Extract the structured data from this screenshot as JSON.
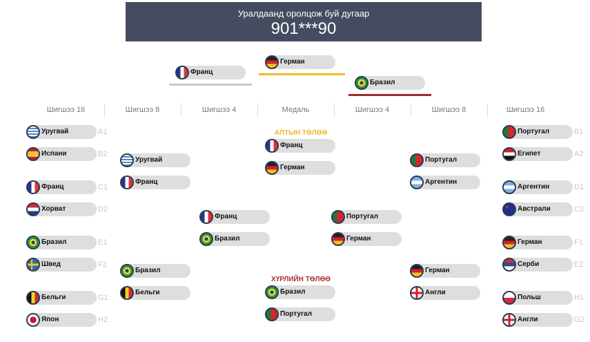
{
  "header": {
    "subtitle": "Уралдаанд оролцож буй дугаар",
    "number": "901***90"
  },
  "podium": {
    "first": {
      "team": "Герман",
      "flag": "de",
      "color": "#f0b92b"
    },
    "second": {
      "team": "Франц",
      "flag": "fr",
      "color": "#c8c8c8"
    },
    "third": {
      "team": "Бразил",
      "flag": "br",
      "color": "#9b2c2c"
    }
  },
  "columns": [
    "Шигшээ 16",
    "Шигшээ 8",
    "Шигшээ 4",
    "Медаль",
    "Шигшээ 4",
    "Шигшээ 8",
    "Шигшээ 16"
  ],
  "medals": {
    "gold": "АЛТЫН ТӨЛӨӨ",
    "bronze": "ХҮРЛИЙН ТӨЛӨӨ",
    "gold_color": "#f0b92b",
    "bronze_color": "#a8322d"
  },
  "r16_left": [
    {
      "team": "Уругвай",
      "flag": "uy",
      "code": "A1"
    },
    {
      "team": "Испани",
      "flag": "es",
      "code": "B2"
    },
    {
      "team": "Франц",
      "flag": "fr",
      "code": "C1"
    },
    {
      "team": "Хорват",
      "flag": "hr",
      "code": "D2"
    },
    {
      "team": "Бразил",
      "flag": "br",
      "code": "E1"
    },
    {
      "team": "Швед",
      "flag": "se",
      "code": "F2"
    },
    {
      "team": "Бельги",
      "flag": "be",
      "code": "G1"
    },
    {
      "team": "Япон",
      "flag": "jp",
      "code": "H2"
    }
  ],
  "r16_right": [
    {
      "team": "Португал",
      "flag": "pt",
      "code": "B1"
    },
    {
      "team": "Египет",
      "flag": "eg",
      "code": "A2"
    },
    {
      "team": "Аргентин",
      "flag": "ar",
      "code": "D1"
    },
    {
      "team": "Австрали",
      "flag": "au",
      "code": "C2"
    },
    {
      "team": "Герман",
      "flag": "de",
      "code": "F1"
    },
    {
      "team": "Серби",
      "flag": "rs",
      "code": "E2"
    },
    {
      "team": "Польш",
      "flag": "pl",
      "code": "H1"
    },
    {
      "team": "Англи",
      "flag": "en",
      "code": "G2"
    }
  ],
  "qf_left": [
    {
      "team": "Уругвай",
      "flag": "uy"
    },
    {
      "team": "Франц",
      "flag": "fr"
    },
    {
      "team": "Бразил",
      "flag": "br"
    },
    {
      "team": "Бельги",
      "flag": "be"
    }
  ],
  "qf_right": [
    {
      "team": "Португал",
      "flag": "pt"
    },
    {
      "team": "Аргентин",
      "flag": "ar"
    },
    {
      "team": "Герман",
      "flag": "de"
    },
    {
      "team": "Англи",
      "flag": "en"
    }
  ],
  "sf_left": [
    {
      "team": "Франц",
      "flag": "fr"
    },
    {
      "team": "Бразил",
      "flag": "br"
    }
  ],
  "sf_right": [
    {
      "team": "Португал",
      "flag": "pt"
    },
    {
      "team": "Герман",
      "flag": "de"
    }
  ],
  "final": [
    {
      "team": "Франц",
      "flag": "fr"
    },
    {
      "team": "Герман",
      "flag": "de"
    }
  ],
  "bronze": [
    {
      "team": "Бразил",
      "flag": "br"
    },
    {
      "team": "Португал",
      "flag": "pt"
    }
  ]
}
